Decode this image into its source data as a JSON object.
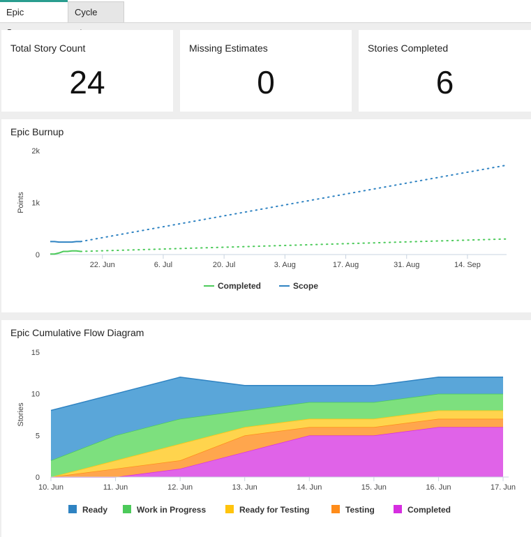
{
  "tabs": [
    {
      "label": "Epic Summary",
      "active": true
    },
    {
      "label": "Cycle Time",
      "active": false
    }
  ],
  "stats": {
    "total_story_count": {
      "title": "Total Story Count",
      "value": "24"
    },
    "missing_estimates": {
      "title": "Missing Estimates",
      "value": "0"
    },
    "stories_completed": {
      "title": "Stories Completed",
      "value": "6"
    }
  },
  "burnup": {
    "title": "Epic Burnup"
  },
  "cfd": {
    "title": "Epic Cumulative Flow Diagram"
  },
  "colors": {
    "accent": "#2a9d8f",
    "completed_line": "#4cca5a",
    "scope_line": "#2f83c2",
    "ready": "#5aa6d9",
    "work_in_progress": "#7de07e",
    "ready_for_testing": "#ffd44d",
    "testing": "#ffa64d",
    "completed_area": "#e063e8"
  },
  "chart_data": [
    {
      "type": "line",
      "title": "Epic Burnup",
      "xlabel": "",
      "ylabel": "Points",
      "x_tick_labels": [
        "22. Jun",
        "6. Jul",
        "20. Jul",
        "3. Aug",
        "17. Aug",
        "31. Aug",
        "14. Sep"
      ],
      "y_tick_labels": [
        "0",
        "1k",
        "2k"
      ],
      "ylim": [
        0,
        2000
      ],
      "xlim": [
        "2015-06-10",
        "2015-09-23"
      ],
      "grid": false,
      "legend": "bottom-center",
      "series": [
        {
          "name": "Completed",
          "actual": {
            "x": [
              "2015-06-10",
              "2015-06-11",
              "2015-06-12",
              "2015-06-13",
              "2015-06-14",
              "2015-06-15",
              "2015-06-16",
              "2015-06-17"
            ],
            "y": [
              10,
              10,
              30,
              60,
              60,
              70,
              70,
              60
            ]
          },
          "projected": {
            "x": [
              "2015-06-17",
              "2015-09-23"
            ],
            "y": [
              60,
              300
            ]
          }
        },
        {
          "name": "Scope",
          "actual": {
            "x": [
              "2015-06-10",
              "2015-06-11",
              "2015-06-12",
              "2015-06-13",
              "2015-06-14",
              "2015-06-15",
              "2015-06-16",
              "2015-06-17"
            ],
            "y": [
              250,
              250,
              240,
              240,
              240,
              240,
              250,
              250
            ]
          },
          "projected": {
            "x": [
              "2015-06-17",
              "2015-09-23"
            ],
            "y": [
              250,
              1720
            ]
          }
        }
      ]
    },
    {
      "type": "area",
      "stacked": true,
      "title": "Epic Cumulative Flow Diagram",
      "xlabel": "",
      "ylabel": "Stories",
      "categories": [
        "10. Jun",
        "11. Jun",
        "12. Jun",
        "13. Jun",
        "14. Jun",
        "15. Jun",
        "16. Jun",
        "17. Jun"
      ],
      "y_tick_labels": [
        "0",
        "5",
        "10",
        "15"
      ],
      "ylim": [
        0,
        15
      ],
      "grid": false,
      "legend": "bottom-center",
      "series": [
        {
          "name": "Completed",
          "values": [
            0,
            0,
            1,
            3,
            5,
            5,
            6,
            6
          ]
        },
        {
          "name": "Testing",
          "values": [
            0,
            1,
            1,
            2,
            1,
            1,
            1,
            1
          ]
        },
        {
          "name": "Ready for Testing",
          "values": [
            0,
            1,
            2,
            1,
            1,
            1,
            1,
            1
          ]
        },
        {
          "name": "Work in Progress",
          "values": [
            2,
            3,
            3,
            2,
            2,
            2,
            2,
            2
          ]
        },
        {
          "name": "Ready",
          "values": [
            6,
            5,
            5,
            3,
            2,
            2,
            2,
            2
          ]
        }
      ],
      "legend_order": [
        "Ready",
        "Work in Progress",
        "Ready for Testing",
        "Testing",
        "Completed"
      ]
    }
  ]
}
